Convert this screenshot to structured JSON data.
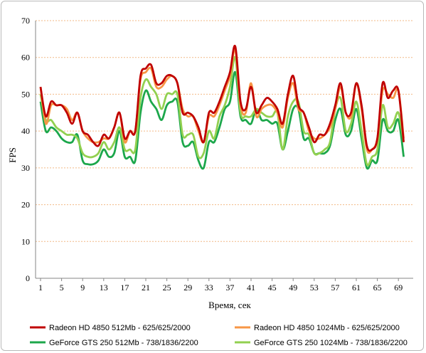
{
  "chart_data": {
    "type": "line",
    "title": "",
    "xlabel": "Время, сек",
    "ylabel": "FPS",
    "ylim": [
      0,
      70
    ],
    "yticks": [
      0,
      10,
      20,
      30,
      40,
      50,
      60,
      70
    ],
    "xlim": [
      1,
      71
    ],
    "xticks": [
      1,
      5,
      9,
      13,
      17,
      21,
      25,
      29,
      33,
      37,
      41,
      45,
      49,
      53,
      57,
      61,
      65,
      69
    ],
    "grid": "horizontal",
    "legend_position": "bottom",
    "x": [
      1,
      2,
      3,
      4,
      5,
      6,
      7,
      8,
      9,
      10,
      11,
      12,
      13,
      14,
      15,
      16,
      17,
      18,
      19,
      20,
      21,
      22,
      23,
      24,
      25,
      26,
      27,
      28,
      29,
      30,
      31,
      32,
      33,
      34,
      35,
      36,
      37,
      38,
      39,
      40,
      41,
      42,
      43,
      44,
      45,
      46,
      47,
      48,
      49,
      50,
      51,
      52,
      53,
      54,
      55,
      56,
      57,
      58,
      59,
      60,
      61,
      62,
      63,
      64,
      65,
      66,
      67,
      68,
      69,
      70
    ],
    "series": [
      {
        "name": "Radeon HD 4850 512Mb - 625/625/2000",
        "color": "#c00000",
        "values": [
          52,
          44,
          48,
          47,
          47,
          45,
          42,
          45,
          40,
          39,
          37,
          36,
          39,
          38,
          41,
          45,
          38,
          40,
          40,
          55,
          57,
          58,
          53,
          53,
          55,
          55,
          53,
          45,
          45,
          44,
          41,
          37,
          45,
          45,
          48,
          52,
          56,
          63,
          48,
          46,
          52,
          45,
          47,
          49,
          48,
          46,
          42,
          50,
          55,
          47,
          45,
          41,
          37,
          39,
          39,
          42,
          47,
          53,
          45,
          45,
          53,
          47,
          36,
          35,
          38,
          53,
          49,
          51,
          51,
          37
        ]
      },
      {
        "name": "Radeon HD 4850 1024Mb - 625/625/2000",
        "color": "#f79646",
        "values": [
          52,
          42,
          47,
          47,
          47,
          46,
          43,
          45,
          40,
          38,
          37,
          37,
          38,
          38,
          41,
          45,
          37,
          40,
          40,
          54,
          56,
          57,
          52,
          52,
          54,
          55,
          53,
          46,
          44,
          44,
          40,
          37,
          44,
          44,
          47,
          51,
          55,
          62,
          47,
          45,
          53,
          44,
          46,
          47,
          47,
          45,
          41,
          49,
          53,
          46,
          45,
          40,
          38,
          38,
          39,
          41,
          46,
          52,
          45,
          44,
          53,
          46,
          35,
          35,
          38,
          51,
          50,
          49,
          51,
          38
        ]
      },
      {
        "name": "GeForce GTS 250 512Mb - 738/1836/2200",
        "color": "#1ca74b",
        "values": [
          48,
          40,
          41,
          40,
          38,
          37,
          37,
          39,
          32,
          31,
          31,
          32,
          35,
          33,
          34,
          40,
          33,
          33,
          32,
          45,
          51,
          48,
          46,
          43,
          47,
          48,
          48,
          37,
          36,
          37,
          32,
          30,
          37,
          37,
          41,
          46,
          48,
          56,
          44,
          43,
          42,
          46,
          43,
          43,
          42,
          42,
          35,
          40,
          46,
          46,
          38,
          38,
          34,
          34,
          34,
          36,
          43,
          46,
          39,
          40,
          46,
          38,
          30,
          32,
          32,
          43,
          40,
          40,
          43,
          33
        ]
      },
      {
        "name": "GeForce GTS 250 1024Mb - 738/1836/2200",
        "color": "#92d050",
        "values": [
          50,
          43,
          43,
          41,
          40,
          39,
          39,
          38,
          34,
          33,
          33,
          34,
          37,
          35,
          37,
          41,
          35,
          35,
          35,
          49,
          54,
          52,
          50,
          46,
          50,
          50,
          50,
          39,
          39,
          39,
          33,
          34,
          40,
          38,
          44,
          47,
          52,
          60,
          45,
          44,
          44,
          46,
          45,
          44,
          44,
          45,
          35,
          44,
          48,
          48,
          40,
          39,
          34,
          34,
          35,
          37,
          46,
          49,
          40,
          42,
          48,
          40,
          31,
          33,
          35,
          47,
          41,
          42,
          45,
          37
        ]
      }
    ]
  }
}
